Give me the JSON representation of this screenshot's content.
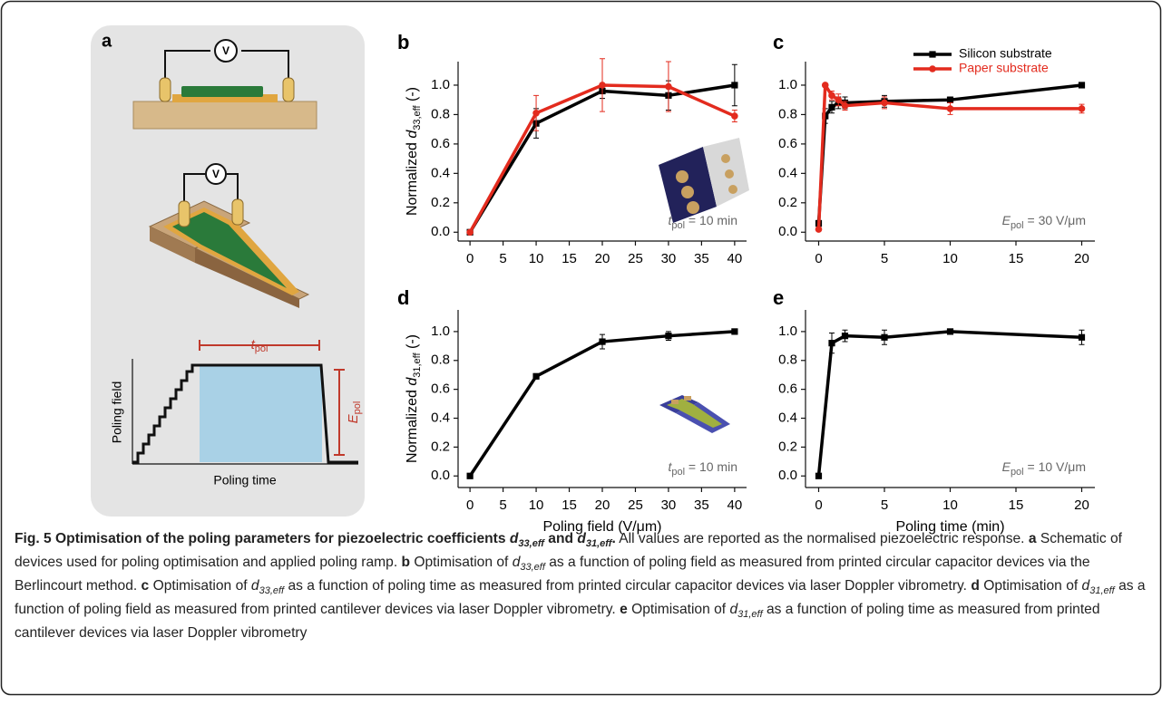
{
  "panel_a": {
    "label": "a",
    "voltmeter_top": "V",
    "voltmeter_middle": "V",
    "t_symbol": "t",
    "t_subscript": "pol",
    "E_symbol": "E",
    "E_subscript": "pol",
    "y_label": "Poling field",
    "x_label": "Poling time"
  },
  "chart_data": [
    {
      "type": "line",
      "label": "b",
      "ylabel": {
        "text": "Normalized ",
        "symbol": "d",
        "subscript": "33,eff",
        "suffix": " (-)"
      },
      "annotation": {
        "symbol": "t",
        "subscript": "pol",
        "text": " = 10 min"
      },
      "x": [
        0,
        10,
        20,
        30,
        40
      ],
      "series": [
        {
          "color": "#000000",
          "marker": "square",
          "values": [
            0,
            0.74,
            0.96,
            0.93,
            1.0
          ],
          "errors": [
            0,
            0.1,
            0.05,
            0.1,
            0.14
          ]
        },
        {
          "color": "#e32b1e",
          "marker": "circle",
          "values": [
            0,
            0.81,
            1.0,
            0.99,
            0.79
          ],
          "errors": [
            0,
            0.12,
            0.18,
            0.17,
            0.04
          ]
        }
      ],
      "xlim": [
        -1.8,
        41.8
      ],
      "ylim": [
        -0.06,
        1.16
      ],
      "xticks": [
        0,
        5,
        10,
        15,
        20,
        25,
        30,
        35,
        40
      ],
      "yticks": [
        {
          "value": 0,
          "label": "0.0"
        },
        {
          "value": 0.2,
          "label": "0.2"
        },
        {
          "value": 0.4,
          "label": "0.4"
        },
        {
          "value": 0.6,
          "label": "0.6"
        },
        {
          "value": 0.8,
          "label": "0.8"
        },
        {
          "value": 1,
          "label": "1.0"
        }
      ]
    },
    {
      "type": "line",
      "label": "c",
      "annotation": {
        "symbol": "E",
        "subscript": "pol",
        "text": " = 30 V/μm"
      },
      "legend": "upper right",
      "x": [
        0,
        0.5,
        1,
        1.5,
        2,
        5,
        10,
        20
      ],
      "series": [
        {
          "name": "Silicon substrate",
          "color": "#000000",
          "marker": "square",
          "values": [
            0.06,
            0.79,
            0.85,
            0.88,
            0.88,
            0.89,
            0.9,
            1.0
          ],
          "errors": [
            0.02,
            0.05,
            0.04,
            0.04,
            0.04,
            0.04,
            0.02,
            0.01
          ]
        },
        {
          "name": "Paper substrate",
          "color": "#e32b1e",
          "marker": "circle",
          "values": [
            0.02,
            1.0,
            0.93,
            0.9,
            0.86,
            0.88,
            0.84,
            0.84
          ],
          "errors": [
            0.01,
            0.01,
            0.03,
            0.04,
            0.03,
            0.04,
            0.04,
            0.03
          ]
        }
      ],
      "xlim": [
        -1,
        21
      ],
      "ylim": [
        -0.06,
        1.16
      ],
      "xticks": [
        0,
        5,
        10,
        15,
        20
      ],
      "yticks": [
        {
          "value": 0,
          "label": "0.0"
        },
        {
          "value": 0.2,
          "label": "0.2"
        },
        {
          "value": 0.4,
          "label": "0.4"
        },
        {
          "value": 0.6,
          "label": "0.6"
        },
        {
          "value": 0.8,
          "label": "0.8"
        },
        {
          "value": 1,
          "label": "1.0"
        }
      ]
    },
    {
      "type": "line",
      "label": "d",
      "ylabel": {
        "text": "Normalized ",
        "symbol": "d",
        "subscript": "31,eff",
        "suffix": " (-)"
      },
      "xlabel": "Poling field (V/μm)",
      "annotation": {
        "symbol": "t",
        "subscript": "pol",
        "text": " = 10 min"
      },
      "x": [
        0,
        10,
        20,
        30,
        40
      ],
      "values": [
        0,
        0.69,
        0.93,
        0.97,
        1.0
      ],
      "errors": [
        0,
        0.01,
        0.05,
        0.03,
        0.01
      ],
      "color": "#000000",
      "marker": "square",
      "xlim": [
        -1.8,
        41.8
      ],
      "ylim": [
        -0.08,
        1.15
      ],
      "xticks": [
        0,
        5,
        10,
        15,
        20,
        25,
        30,
        35,
        40
      ],
      "yticks": [
        {
          "value": 0,
          "label": "0.0"
        },
        {
          "value": 0.2,
          "label": "0.2"
        },
        {
          "value": 0.4,
          "label": "0.4"
        },
        {
          "value": 0.6,
          "label": "0.6"
        },
        {
          "value": 0.8,
          "label": "0.8"
        },
        {
          "value": 1,
          "label": "1.0"
        }
      ]
    },
    {
      "type": "line",
      "label": "e",
      "xlabel": "Poling time (min)",
      "annotation": {
        "symbol": "E",
        "subscript": "pol",
        "text": " = 10 V/μm"
      },
      "x": [
        0,
        1,
        2,
        5,
        10,
        20
      ],
      "values": [
        0,
        0.92,
        0.97,
        0.96,
        1.0,
        0.96
      ],
      "errors": [
        0,
        0.07,
        0.04,
        0.05,
        0.01,
        0.05
      ],
      "color": "#000000",
      "marker": "square",
      "xlim": [
        -1,
        21
      ],
      "ylim": [
        -0.08,
        1.15
      ],
      "xticks": [
        0,
        5,
        10,
        15,
        20
      ],
      "yticks": [
        {
          "value": 0,
          "label": "0.0"
        },
        {
          "value": 0.2,
          "label": "0.2"
        },
        {
          "value": 0.4,
          "label": "0.4"
        },
        {
          "value": 0.6,
          "label": "0.6"
        },
        {
          "value": 0.8,
          "label": "0.8"
        },
        {
          "value": 1,
          "label": "1.0"
        }
      ]
    }
  ],
  "caption": [
    {
      "text": "Fig. 5 Optimisation of the poling parameters for piezoelectric coefficients ",
      "bold": true
    },
    {
      "text": "d",
      "bold": true,
      "italic": true
    },
    {
      "text": "33,eff",
      "bold": true,
      "italic": true,
      "sub": true
    },
    {
      "text": " and ",
      "bold": true
    },
    {
      "text": "d",
      "bold": true,
      "italic": true
    },
    {
      "text": "31,eff",
      "bold": true,
      "italic": true,
      "sub": true
    },
    {
      "text": ".",
      "bold": true
    },
    {
      "text": " All values are reported as the normalised piezoelectric response. "
    },
    {
      "text": "a",
      "bold": true
    },
    {
      "text": " Schematic of devices used for poling optimisation and applied poling ramp. "
    },
    {
      "text": "b",
      "bold": true
    },
    {
      "text": " Optimisation of "
    },
    {
      "text": "d",
      "italic": true
    },
    {
      "text": "33,eff",
      "italic": true,
      "sub": true
    },
    {
      "text": " as a function of poling field as measured from printed circular capacitor devices via the Berlincourt method. "
    },
    {
      "text": "c",
      "bold": true
    },
    {
      "text": " Optimisation of "
    },
    {
      "text": "d",
      "italic": true
    },
    {
      "text": "33,eff",
      "italic": true,
      "sub": true
    },
    {
      "text": " as a function of poling time as measured from printed circular capacitor devices via laser Doppler vibrometry. "
    },
    {
      "text": "d",
      "bold": true
    },
    {
      "text": " Optimisation of "
    },
    {
      "text": "d",
      "italic": true
    },
    {
      "text": "31,eff",
      "italic": true,
      "sub": true
    },
    {
      "text": " as a function of poling field as measured from printed cantilever devices via laser Doppler vibrometry. "
    },
    {
      "text": "e",
      "bold": true
    },
    {
      "text": " Optimisation of "
    },
    {
      "text": "d",
      "italic": true
    },
    {
      "text": "31,eff",
      "italic": true,
      "sub": true
    },
    {
      "text": " as a function of poling time as measured from printed cantilever devices via laser Doppler vibrometry"
    }
  ]
}
